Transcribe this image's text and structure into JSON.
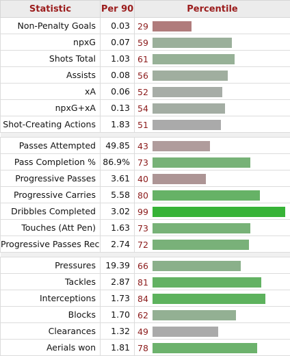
{
  "header": {
    "col_statistic": "Statistic",
    "col_per90": "Per 90",
    "col_percentile": "Percentile"
  },
  "groups": [
    {
      "rows": [
        {
          "stat": "Non-Penalty Goals",
          "per90": "0.03",
          "pct": "29",
          "color": "#b07c7c"
        },
        {
          "stat": "npxG",
          "per90": "0.07",
          "pct": "59",
          "color": "#9bb09b"
        },
        {
          "stat": "Shots Total",
          "per90": "1.03",
          "pct": "61",
          "color": "#97b197"
        },
        {
          "stat": "Assists",
          "per90": "0.08",
          "pct": "56",
          "color": "#a0ae9f"
        },
        {
          "stat": "xA",
          "per90": "0.06",
          "pct": "52",
          "color": "#a7ada7"
        },
        {
          "stat": "npxG+xA",
          "per90": "0.13",
          "pct": "54",
          "color": "#a3ada3"
        },
        {
          "stat": "Shot-Creating Actions",
          "per90": "1.83",
          "pct": "51",
          "color": "#aaaaaa"
        }
      ]
    },
    {
      "rows": [
        {
          "stat": "Passes Attempted",
          "per90": "49.85",
          "pct": "43",
          "color": "#b09c9c"
        },
        {
          "stat": "Pass Completion %",
          "per90": "86.9%",
          "pct": "73",
          "color": "#77b277"
        },
        {
          "stat": "Progressive Passes",
          "per90": "3.61",
          "pct": "40",
          "color": "#ad9595"
        },
        {
          "stat": "Progressive Carries",
          "per90": "5.58",
          "pct": "80",
          "color": "#66b266"
        },
        {
          "stat": "Dribbles Completed",
          "per90": "3.02",
          "pct": "99",
          "color": "#37b337"
        },
        {
          "stat": "Touches (Att Pen)",
          "per90": "1.63",
          "pct": "73",
          "color": "#77b277"
        },
        {
          "stat": "Progressive Passes Rec",
          "per90": "2.74",
          "pct": "72",
          "color": "#79b179"
        }
      ]
    },
    {
      "rows": [
        {
          "stat": "Pressures",
          "per90": "19.39",
          "pct": "66",
          "color": "#8ab08a"
        },
        {
          "stat": "Tackles",
          "per90": "2.87",
          "pct": "81",
          "color": "#63b263"
        },
        {
          "stat": "Interceptions",
          "per90": "1.73",
          "pct": "84",
          "color": "#5db25d"
        },
        {
          "stat": "Blocks",
          "per90": "1.70",
          "pct": "62",
          "color": "#93b093"
        },
        {
          "stat": "Clearances",
          "per90": "1.32",
          "pct": "49",
          "color": "#aaaaaa"
        },
        {
          "stat": "Aerials won",
          "per90": "1.81",
          "pct": "78",
          "color": "#6cb26c"
        }
      ]
    }
  ]
}
